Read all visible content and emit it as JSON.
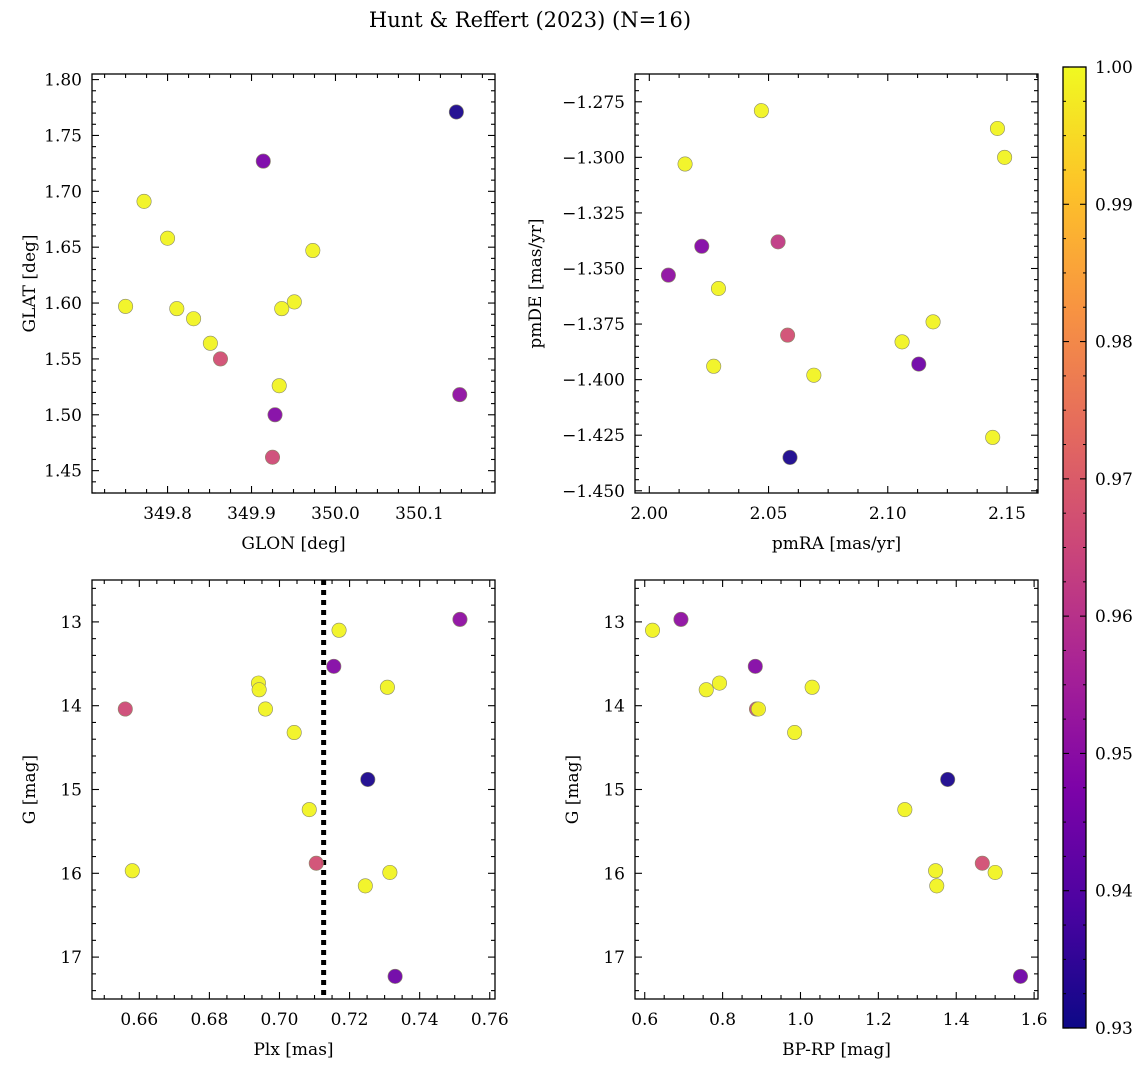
{
  "figure": {
    "title": "Hunt & Reffert (2023) (N=16)"
  },
  "colorbar": {
    "min": 0.93,
    "max": 1.0,
    "ticks": [
      0.93,
      0.94,
      0.95,
      0.96,
      0.97,
      0.98,
      0.99,
      1.0
    ],
    "tick_labels": [
      "0.93",
      "0.94",
      "0.95",
      "0.96",
      "0.97",
      "0.98",
      "0.99",
      "1.00"
    ],
    "colormap": "plasma"
  },
  "chart_data": [
    {
      "type": "scatter",
      "id": "glon-glat",
      "xlabel": "GLON [deg]",
      "ylabel": "GLAT [deg]",
      "xlim": [
        349.71,
        350.19
      ],
      "ylim": [
        1.43,
        1.805
      ],
      "xticks": [
        349.8,
        349.9,
        350.0,
        350.1
      ],
      "xtick_labels": [
        "349.8",
        "349.9",
        "350.0",
        "350.1"
      ],
      "yticks": [
        1.45,
        1.5,
        1.55,
        1.6,
        1.65,
        1.7,
        1.75,
        1.8
      ],
      "ytick_labels": [
        "1.45",
        "1.50",
        "1.55",
        "1.60",
        "1.65",
        "1.70",
        "1.75",
        "1.80"
      ],
      "y_inverted": false,
      "points": [
        {
          "x": 350.144,
          "y": 1.771,
          "c": 0.932
        },
        {
          "x": 349.914,
          "y": 1.727,
          "c": 0.947
        },
        {
          "x": 349.772,
          "y": 1.691,
          "c": 0.999
        },
        {
          "x": 349.8,
          "y": 1.658,
          "c": 0.999
        },
        {
          "x": 349.973,
          "y": 1.647,
          "c": 0.999
        },
        {
          "x": 349.75,
          "y": 1.597,
          "c": 0.999
        },
        {
          "x": 349.811,
          "y": 1.595,
          "c": 0.999
        },
        {
          "x": 349.951,
          "y": 1.601,
          "c": 0.999
        },
        {
          "x": 349.936,
          "y": 1.595,
          "c": 0.999
        },
        {
          "x": 349.831,
          "y": 1.586,
          "c": 0.999
        },
        {
          "x": 349.851,
          "y": 1.564,
          "c": 0.999
        },
        {
          "x": 349.863,
          "y": 1.55,
          "c": 0.967
        },
        {
          "x": 349.933,
          "y": 1.526,
          "c": 0.999
        },
        {
          "x": 350.148,
          "y": 1.518,
          "c": 0.951
        },
        {
          "x": 349.928,
          "y": 1.5,
          "c": 0.949
        },
        {
          "x": 349.925,
          "y": 1.462,
          "c": 0.966
        }
      ]
    },
    {
      "type": "scatter",
      "id": "pmra-pmde",
      "xlabel": "pmRA [mas/yr]",
      "ylabel": "pmDE [mas/yr]",
      "xlim": [
        1.994,
        2.163
      ],
      "ylim": [
        -1.451,
        -1.2625
      ],
      "xticks": [
        2.0,
        2.05,
        2.1,
        2.15
      ],
      "xtick_labels": [
        "2.00",
        "2.05",
        "2.10",
        "2.15"
      ],
      "yticks": [
        -1.45,
        -1.425,
        -1.4,
        -1.375,
        -1.35,
        -1.325,
        -1.3,
        -1.275
      ],
      "ytick_labels": [
        "−1.450",
        "−1.425",
        "−1.400",
        "−1.375",
        "−1.350",
        "−1.325",
        "−1.300",
        "−1.275"
      ],
      "y_inverted": false,
      "points": [
        {
          "x": 2.047,
          "y": -1.279,
          "c": 0.999
        },
        {
          "x": 2.146,
          "y": -1.287,
          "c": 0.999
        },
        {
          "x": 2.149,
          "y": -1.3,
          "c": 0.999
        },
        {
          "x": 2.015,
          "y": -1.303,
          "c": 0.999
        },
        {
          "x": 2.022,
          "y": -1.34,
          "c": 0.949
        },
        {
          "x": 2.054,
          "y": -1.338,
          "c": 0.962
        },
        {
          "x": 2.008,
          "y": -1.353,
          "c": 0.951
        },
        {
          "x": 2.029,
          "y": -1.359,
          "c": 0.999
        },
        {
          "x": 2.119,
          "y": -1.374,
          "c": 0.999
        },
        {
          "x": 2.058,
          "y": -1.38,
          "c": 0.967
        },
        {
          "x": 2.106,
          "y": -1.383,
          "c": 0.999
        },
        {
          "x": 2.027,
          "y": -1.394,
          "c": 0.999
        },
        {
          "x": 2.113,
          "y": -1.393,
          "c": 0.945
        },
        {
          "x": 2.069,
          "y": -1.398,
          "c": 0.999
        },
        {
          "x": 2.144,
          "y": -1.426,
          "c": 0.999
        },
        {
          "x": 2.059,
          "y": -1.435,
          "c": 0.932
        }
      ]
    },
    {
      "type": "scatter",
      "id": "plx-g",
      "xlabel": "Plx [mas]",
      "ylabel": "G [mag]",
      "xlim": [
        0.6465,
        0.7615
      ],
      "ylim": [
        17.5,
        12.5
      ],
      "xticks": [
        0.66,
        0.68,
        0.7,
        0.72,
        0.74,
        0.76
      ],
      "xtick_labels": [
        "0.66",
        "0.68",
        "0.70",
        "0.72",
        "0.74",
        "0.76"
      ],
      "yticks": [
        13,
        14,
        15,
        16,
        17
      ],
      "ytick_labels": [
        "13",
        "14",
        "15",
        "16",
        "17"
      ],
      "y_inverted": true,
      "vline": {
        "x": 0.7126,
        "style": "dotted"
      },
      "points": [
        {
          "x": 0.7515,
          "y": 12.97,
          "c": 0.951
        },
        {
          "x": 0.717,
          "y": 13.1,
          "c": 0.999
        },
        {
          "x": 0.7155,
          "y": 13.53,
          "c": 0.949
        },
        {
          "x": 0.694,
          "y": 13.73,
          "c": 0.999
        },
        {
          "x": 0.6942,
          "y": 13.81,
          "c": 0.999
        },
        {
          "x": 0.7308,
          "y": 13.78,
          "c": 0.999
        },
        {
          "x": 0.656,
          "y": 14.04,
          "c": 0.966
        },
        {
          "x": 0.696,
          "y": 14.04,
          "c": 0.999
        },
        {
          "x": 0.7042,
          "y": 14.32,
          "c": 0.999
        },
        {
          "x": 0.7252,
          "y": 14.88,
          "c": 0.932
        },
        {
          "x": 0.7085,
          "y": 15.24,
          "c": 0.999
        },
        {
          "x": 0.7105,
          "y": 15.88,
          "c": 0.967
        },
        {
          "x": 0.658,
          "y": 15.97,
          "c": 0.999
        },
        {
          "x": 0.7315,
          "y": 15.99,
          "c": 0.999
        },
        {
          "x": 0.7245,
          "y": 16.15,
          "c": 0.999
        },
        {
          "x": 0.733,
          "y": 17.23,
          "c": 0.945
        }
      ]
    },
    {
      "type": "scatter",
      "id": "bprp-g",
      "xlabel": "BP-RP [mag]",
      "ylabel": "G [mag]",
      "xlim": [
        0.575,
        1.61
      ],
      "ylim": [
        17.5,
        12.5
      ],
      "xticks": [
        0.6,
        0.8,
        1.0,
        1.2,
        1.4,
        1.6
      ],
      "xtick_labels": [
        "0.6",
        "0.8",
        "1.0",
        "1.2",
        "1.4",
        "1.6"
      ],
      "yticks": [
        13,
        14,
        15,
        16,
        17
      ],
      "ytick_labels": [
        "13",
        "14",
        "15",
        "16",
        "17"
      ],
      "y_inverted": true,
      "points": [
        {
          "x": 0.62,
          "y": 13.1,
          "c": 0.999
        },
        {
          "x": 0.693,
          "y": 12.97,
          "c": 0.951
        },
        {
          "x": 0.758,
          "y": 13.81,
          "c": 0.999
        },
        {
          "x": 0.792,
          "y": 13.73,
          "c": 0.999
        },
        {
          "x": 0.884,
          "y": 13.53,
          "c": 0.949
        },
        {
          "x": 0.887,
          "y": 14.04,
          "c": 0.966
        },
        {
          "x": 0.892,
          "y": 14.04,
          "c": 0.999
        },
        {
          "x": 0.985,
          "y": 14.32,
          "c": 0.999
        },
        {
          "x": 1.03,
          "y": 13.78,
          "c": 0.999
        },
        {
          "x": 1.378,
          "y": 14.88,
          "c": 0.932
        },
        {
          "x": 1.268,
          "y": 15.24,
          "c": 0.999
        },
        {
          "x": 1.467,
          "y": 15.88,
          "c": 0.967
        },
        {
          "x": 1.347,
          "y": 15.97,
          "c": 0.999
        },
        {
          "x": 1.5,
          "y": 15.99,
          "c": 0.999
        },
        {
          "x": 1.35,
          "y": 16.15,
          "c": 0.999
        },
        {
          "x": 1.565,
          "y": 17.23,
          "c": 0.945
        }
      ]
    }
  ]
}
